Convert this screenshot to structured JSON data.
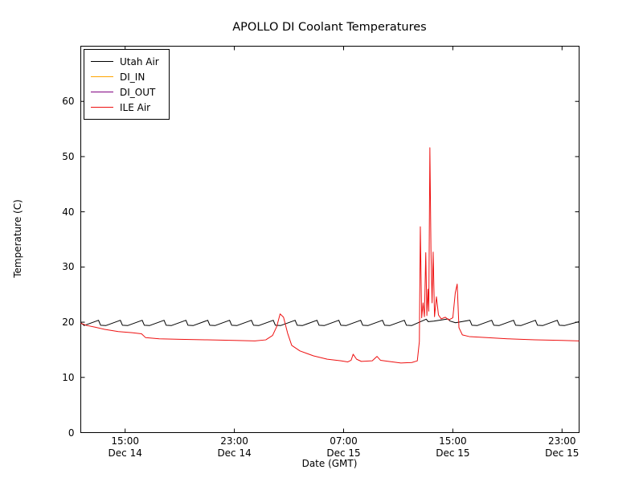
{
  "chart_data": {
    "type": "line",
    "title": "APOLLO DI Coolant Temperatures",
    "xlabel": "Date (GMT)",
    "ylabel": "Temperature (C)",
    "x_encoding": "hours since Dec 14 00:00 GMT",
    "xlim": [
      11.75,
      48.25
    ],
    "ylim": [
      0,
      70
    ],
    "grid": false,
    "legend_position": "upper left",
    "yticks": [
      0,
      10,
      20,
      30,
      40,
      50,
      60
    ],
    "xticks": [
      {
        "x": 15,
        "time": "15:00",
        "date": "Dec 14"
      },
      {
        "x": 23,
        "time": "23:00",
        "date": "Dec 14"
      },
      {
        "x": 31,
        "time": "07:00",
        "date": "Dec 15"
      },
      {
        "x": 39,
        "time": "15:00",
        "date": "Dec 15"
      },
      {
        "x": 47,
        "time": "23:00",
        "date": "Dec 15"
      }
    ],
    "series": [
      {
        "name": "Utah Air",
        "color": "#000000",
        "points": [
          [
            11.75,
            19.9
          ],
          [
            12.0,
            19.4
          ],
          [
            13.05,
            20.35
          ],
          [
            13.2,
            19.45
          ],
          [
            13.6,
            19.4
          ],
          [
            14.65,
            20.35
          ],
          [
            14.8,
            19.45
          ],
          [
            15.2,
            19.4
          ],
          [
            16.25,
            20.35
          ],
          [
            16.4,
            19.45
          ],
          [
            16.8,
            19.4
          ],
          [
            17.85,
            20.35
          ],
          [
            18.0,
            19.45
          ],
          [
            18.4,
            19.4
          ],
          [
            19.45,
            20.35
          ],
          [
            19.6,
            19.45
          ],
          [
            20.0,
            19.4
          ],
          [
            21.05,
            20.35
          ],
          [
            21.2,
            19.45
          ],
          [
            21.6,
            19.4
          ],
          [
            22.65,
            20.35
          ],
          [
            22.8,
            19.45
          ],
          [
            23.2,
            19.4
          ],
          [
            24.25,
            20.35
          ],
          [
            24.4,
            19.45
          ],
          [
            24.8,
            19.4
          ],
          [
            25.85,
            20.35
          ],
          [
            26.0,
            19.45
          ],
          [
            26.4,
            19.4
          ],
          [
            27.45,
            20.35
          ],
          [
            27.6,
            19.45
          ],
          [
            28.0,
            19.4
          ],
          [
            29.05,
            20.35
          ],
          [
            29.2,
            19.45
          ],
          [
            29.6,
            19.4
          ],
          [
            30.65,
            20.35
          ],
          [
            30.8,
            19.45
          ],
          [
            31.2,
            19.4
          ],
          [
            32.25,
            20.35
          ],
          [
            32.4,
            19.45
          ],
          [
            32.8,
            19.4
          ],
          [
            33.85,
            20.35
          ],
          [
            34.0,
            19.45
          ],
          [
            34.4,
            19.4
          ],
          [
            35.45,
            20.35
          ],
          [
            35.6,
            19.45
          ],
          [
            36.0,
            19.4
          ],
          [
            37.05,
            20.55
          ],
          [
            37.2,
            20.1
          ],
          [
            37.6,
            20.2
          ],
          [
            38.65,
            20.6
          ],
          [
            38.8,
            20.2
          ],
          [
            39.2,
            19.9
          ],
          [
            40.25,
            20.35
          ],
          [
            40.4,
            19.45
          ],
          [
            40.8,
            19.4
          ],
          [
            41.85,
            20.35
          ],
          [
            42.0,
            19.45
          ],
          [
            42.4,
            19.4
          ],
          [
            43.45,
            20.35
          ],
          [
            43.6,
            19.45
          ],
          [
            44.0,
            19.4
          ],
          [
            45.05,
            20.35
          ],
          [
            45.2,
            19.45
          ],
          [
            45.6,
            19.4
          ],
          [
            46.65,
            20.35
          ],
          [
            46.8,
            19.45
          ],
          [
            47.2,
            19.4
          ],
          [
            48.25,
            20.1
          ]
        ]
      },
      {
        "name": "DI_IN",
        "color": "#ffa500",
        "points": []
      },
      {
        "name": "DI_OUT",
        "color": "#800080",
        "points": []
      },
      {
        "name": "ILE Air",
        "color": "#ee1111",
        "points": [
          [
            11.75,
            19.8
          ],
          [
            12.2,
            19.4
          ],
          [
            12.8,
            19.1
          ],
          [
            13.5,
            18.7
          ],
          [
            14.5,
            18.3
          ],
          [
            15.5,
            18.1
          ],
          [
            16.2,
            17.9
          ],
          [
            16.5,
            17.2
          ],
          [
            17.5,
            17.0
          ],
          [
            19.0,
            16.9
          ],
          [
            21.0,
            16.8
          ],
          [
            23.0,
            16.7
          ],
          [
            24.5,
            16.6
          ],
          [
            25.3,
            16.8
          ],
          [
            25.8,
            17.6
          ],
          [
            26.1,
            19.2
          ],
          [
            26.35,
            21.5
          ],
          [
            26.6,
            20.9
          ],
          [
            26.9,
            18.0
          ],
          [
            27.2,
            15.8
          ],
          [
            27.8,
            14.8
          ],
          [
            28.8,
            13.9
          ],
          [
            29.8,
            13.3
          ],
          [
            30.8,
            13.0
          ],
          [
            31.3,
            12.8
          ],
          [
            31.55,
            13.1
          ],
          [
            31.7,
            14.2
          ],
          [
            31.95,
            13.3
          ],
          [
            32.3,
            12.9
          ],
          [
            33.1,
            13.0
          ],
          [
            33.45,
            13.8
          ],
          [
            33.7,
            13.1
          ],
          [
            34.3,
            12.9
          ],
          [
            35.2,
            12.6
          ],
          [
            36.0,
            12.7
          ],
          [
            36.4,
            13.0
          ],
          [
            36.55,
            16.5
          ],
          [
            36.62,
            37.3
          ],
          [
            36.72,
            20.8
          ],
          [
            36.82,
            23.5
          ],
          [
            36.92,
            21.0
          ],
          [
            37.02,
            32.6
          ],
          [
            37.1,
            21.2
          ],
          [
            37.18,
            26.0
          ],
          [
            37.24,
            22.0
          ],
          [
            37.32,
            51.6
          ],
          [
            37.4,
            33.0
          ],
          [
            37.48,
            23.5
          ],
          [
            37.56,
            32.7
          ],
          [
            37.66,
            21.0
          ],
          [
            37.8,
            24.6
          ],
          [
            37.95,
            21.3
          ],
          [
            38.15,
            20.6
          ],
          [
            38.45,
            20.9
          ],
          [
            38.7,
            20.4
          ],
          [
            39.0,
            20.8
          ],
          [
            39.18,
            25.3
          ],
          [
            39.32,
            26.9
          ],
          [
            39.45,
            19.0
          ],
          [
            39.7,
            17.7
          ],
          [
            40.2,
            17.4
          ],
          [
            41.5,
            17.2
          ],
          [
            43.0,
            17.0
          ],
          [
            45.0,
            16.8
          ],
          [
            47.0,
            16.7
          ],
          [
            48.25,
            16.6
          ]
        ]
      }
    ]
  }
}
